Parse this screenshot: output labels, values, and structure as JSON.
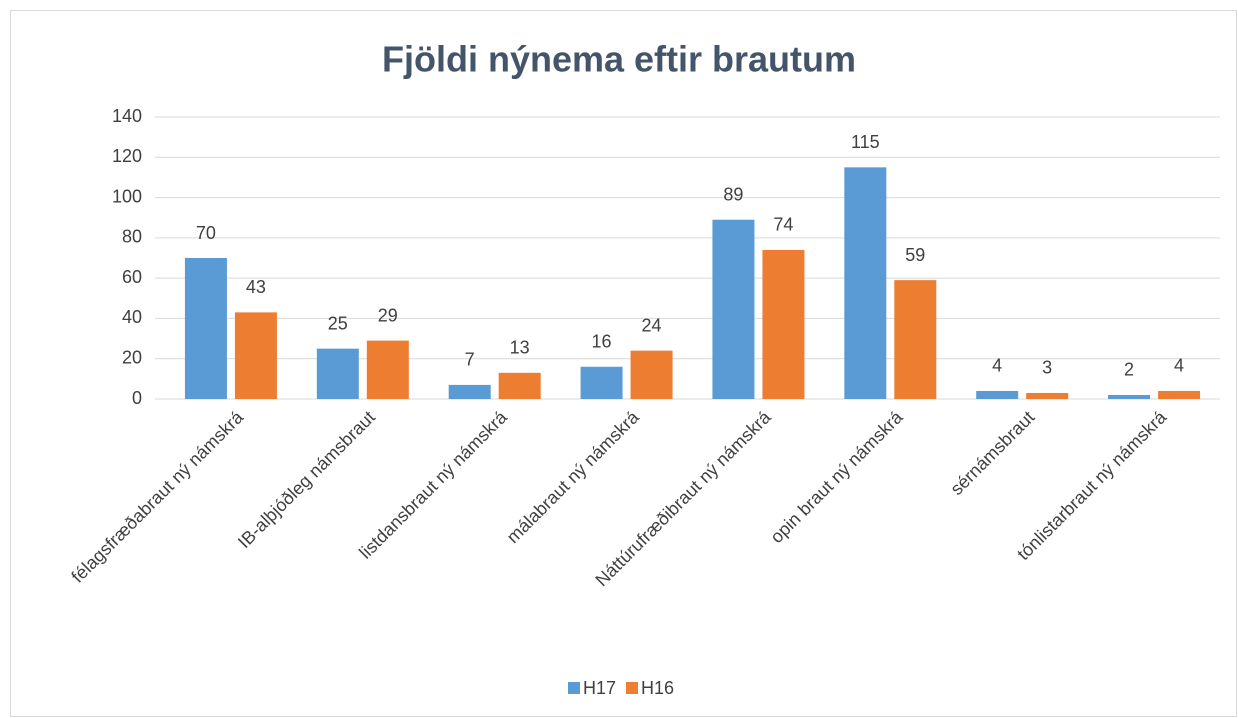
{
  "chart_data": {
    "type": "bar",
    "title": "Fjöldi nýnema eftir brautum",
    "categories": [
      "félagsfræðabraut ný námskrá",
      "IB-alþjóðleg námsbraut",
      "listdansbraut ný námskrá",
      "málabraut ný námskrá",
      "Náttúrufræðibraut ný námskrá",
      "opin braut ný námskrá",
      "sérnámsbraut",
      "tónlistarbraut ný námskrá"
    ],
    "series": [
      {
        "name": "H17",
        "color": "#5b9bd5",
        "values": [
          70,
          25,
          7,
          16,
          89,
          115,
          4,
          2
        ]
      },
      {
        "name": "H16",
        "color": "#ed7d31",
        "values": [
          43,
          29,
          13,
          24,
          74,
          59,
          3,
          4
        ]
      }
    ],
    "ylim": [
      0,
      140
    ],
    "yticks": [
      0,
      20,
      40,
      60,
      80,
      100,
      120,
      140
    ],
    "grid": true,
    "legend": "bottom"
  }
}
